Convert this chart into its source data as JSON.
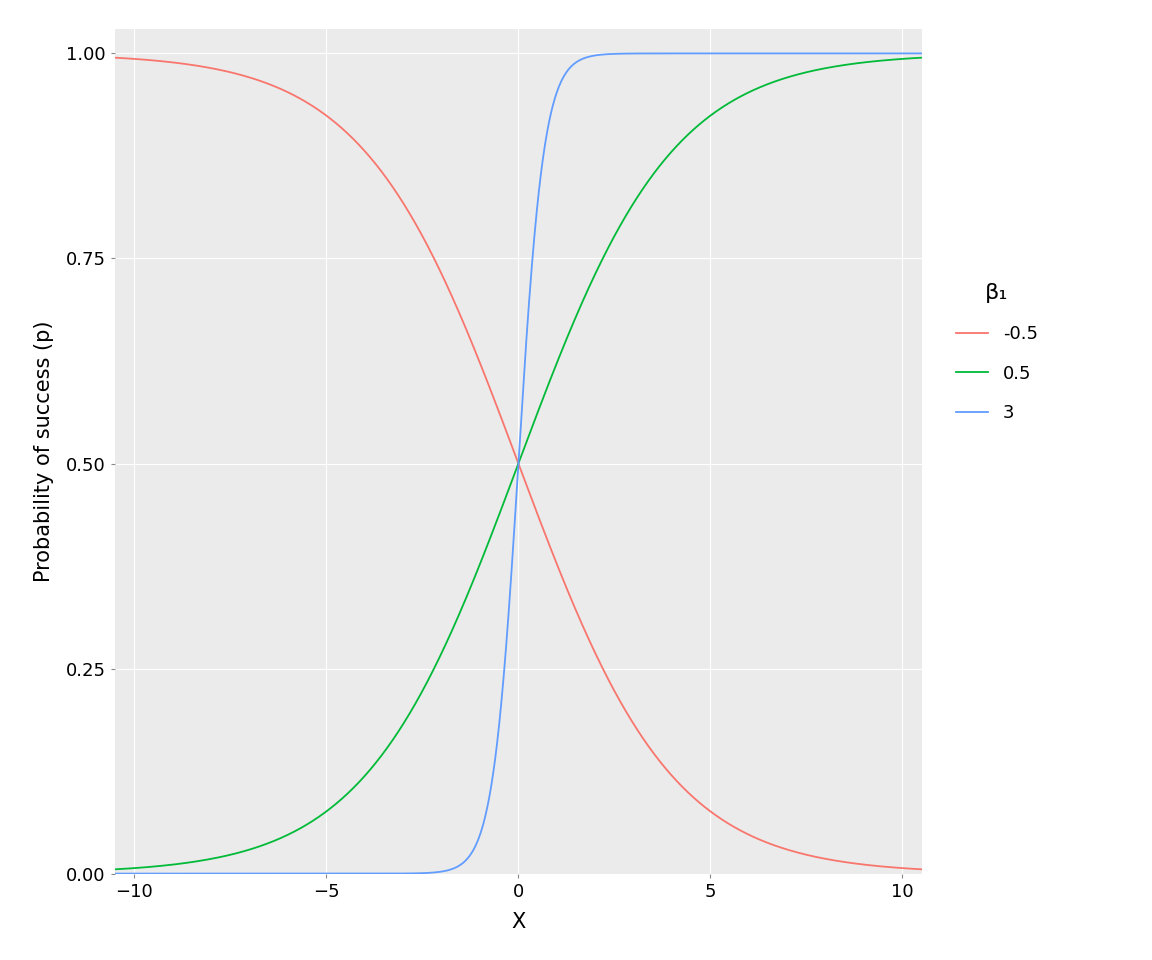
{
  "beta0": 0,
  "betas": [
    -0.5,
    0.5,
    3
  ],
  "x_min": -10.5,
  "x_max": 10.5,
  "y_min": 0.0,
  "y_max": 1.03,
  "colors": [
    "#F8766D",
    "#00BA38",
    "#619CFF"
  ],
  "legend_labels": [
    "-0.5",
    "0.5",
    "3"
  ],
  "legend_title": "β₁",
  "xlabel": "X",
  "ylabel": "Probability of success (p)",
  "x_ticks": [
    -10,
    -5,
    0,
    5,
    10
  ],
  "y_ticks": [
    0.0,
    0.25,
    0.5,
    0.75,
    1.0
  ],
  "background_color": "#FFFFFF",
  "panel_background": "#EBEBEB",
  "grid_color": "#FFFFFF",
  "axis_color": "#333333",
  "line_width": 1.3,
  "n_points": 2000
}
